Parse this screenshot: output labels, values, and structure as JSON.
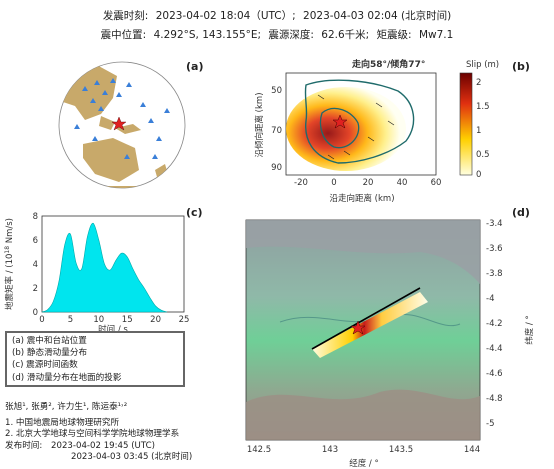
{
  "header": {
    "origin_time_label": "发震时刻:",
    "origin_time_utc": "2023-04-02 18:04（UTC）;",
    "origin_time_bj": "2023-04-03  02:04 (北京时间)",
    "location_label": "震中位置:",
    "location_value": "4.292°S, 143.155°E;",
    "depth_label": "震源深度:",
    "depth_value": "62.6千米;",
    "magnitude_label": "矩震级:",
    "magnitude_value": "Mw7.1"
  },
  "panels": {
    "a": "(a)",
    "b": "(b)",
    "c": "(c)",
    "d": "(d)"
  },
  "panel_b": {
    "title": "走向58°/倾角77°",
    "xlabel": "沿走向距离 (km)",
    "ylabel": "沿倾向距离 (km)",
    "xticks": [
      "-20",
      "0",
      "20",
      "40",
      "60"
    ],
    "yticks": [
      "50",
      "70",
      "90"
    ],
    "colorbar_title": "Slip (m)",
    "colorbar_ticks": [
      "2",
      "1.5",
      "1",
      "0.5",
      "0"
    ],
    "colors": {
      "low": "#ffffe0",
      "mid": "#ffd000",
      "high": "#8b0000"
    }
  },
  "chart_data": {
    "type": "area",
    "x": [
      0,
      1,
      2,
      3,
      4,
      5,
      6,
      7,
      8,
      9,
      10,
      11,
      12,
      13,
      14,
      15,
      16,
      17,
      18,
      19,
      20,
      21,
      22
    ],
    "values": [
      0,
      0.2,
      0.9,
      2.6,
      5.6,
      6.5,
      4.1,
      3.6,
      6.3,
      7.4,
      6.0,
      4.0,
      3.5,
      4.3,
      4.9,
      4.6,
      3.6,
      2.7,
      2.0,
      1.2,
      0.5,
      0.15,
      0
    ],
    "xlabel": "时间 / s",
    "ylabel": "地震矩率 / (10",
    "ylabel_sup": "18",
    "ylabel_tail": " Nm/s)",
    "xlim": [
      0,
      25
    ],
    "ylim": [
      0,
      8
    ],
    "xticks": [
      "0",
      "5",
      "10",
      "15",
      "20",
      "25"
    ],
    "yticks": [
      "0",
      "2",
      "4",
      "6",
      "8"
    ],
    "fill_color": "#00e5ee"
  },
  "panel_d": {
    "xlabel": "经度 / °",
    "ylabel": "纬度 / °",
    "xticks": [
      "142.5",
      "143",
      "143.5",
      "144"
    ],
    "yticks": [
      "-3.4",
      "-3.6",
      "-3.8",
      "-4",
      "-4.2",
      "-4.4",
      "-4.6",
      "-4.8",
      "-5"
    ]
  },
  "legend": [
    "(a) 震中和台站位置",
    "(b) 静态滑动量分布",
    "(c) 震源时间函数",
    "(d) 滑动量分布在地面的投影"
  ],
  "credits": {
    "authors": "张旭¹, 张勇², 许力生¹, 陈运泰¹˒²",
    "affil1": "1. 中国地震局地球物理研究所",
    "affil2": "2. 北京大学地球与空间科学学院地球物理学系",
    "release_label": "发布时间:",
    "release_utc": "2023-04-02  19:45 (UTC)",
    "release_bj": "2023-04-03  03:45 (北京时间)"
  }
}
